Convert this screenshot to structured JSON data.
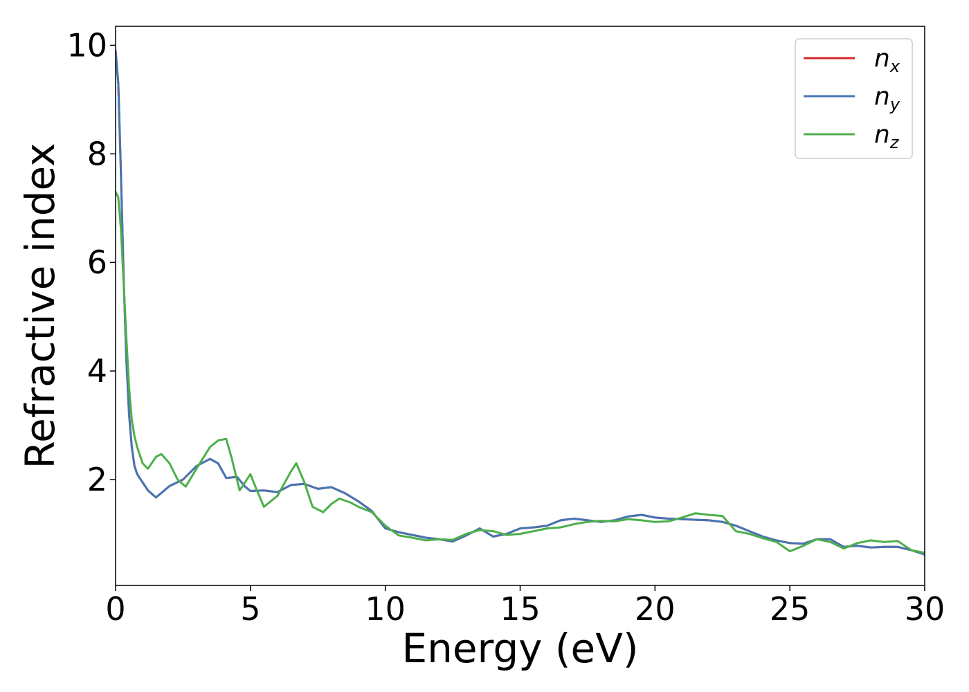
{
  "chart_data": {
    "type": "line",
    "title": "",
    "xlabel": "Energy (eV)",
    "ylabel": "Refractive index",
    "xlim": [
      0,
      30
    ],
    "ylim": [
      0.05,
      10.35
    ],
    "xticks": [
      0,
      5,
      10,
      15,
      20,
      25,
      30
    ],
    "xtick_labels": [
      "0",
      "5",
      "10",
      "15",
      "20",
      "25",
      "30"
    ],
    "yticks": [
      2,
      4,
      6,
      8,
      10
    ],
    "ytick_labels": [
      "2",
      "4",
      "6",
      "8",
      "10"
    ],
    "grid": false,
    "legend_position": "top-right",
    "series": [
      {
        "name": "n_x",
        "legend_base": "n",
        "legend_sub": "x",
        "color": "#d62728",
        "x": [
          0,
          0.1,
          0.2,
          0.3,
          0.4,
          0.5,
          0.6,
          0.7,
          0.8,
          1.0,
          1.2,
          1.5,
          2.0,
          2.5,
          3.0,
          3.5,
          3.8,
          4.1,
          4.5,
          4.8,
          5.0,
          5.5,
          6.0,
          6.5,
          7.0,
          7.5,
          8.0,
          8.5,
          9.0,
          9.5,
          10.0,
          10.5,
          11.0,
          11.5,
          12.0,
          12.5,
          13.0,
          13.5,
          14.0,
          14.5,
          15.0,
          15.5,
          16.0,
          16.5,
          17.0,
          17.5,
          18.0,
          18.5,
          19.0,
          19.5,
          20.0,
          20.5,
          21.0,
          21.5,
          22.0,
          22.5,
          23.0,
          23.5,
          24.0,
          24.5,
          25.0,
          25.5,
          26.0,
          26.5,
          27.0,
          27.5,
          28.0,
          28.5,
          29.0,
          29.5,
          30.0
        ],
        "values": [
          9.9,
          9.3,
          7.6,
          5.7,
          4.2,
          3.2,
          2.6,
          2.25,
          2.1,
          1.95,
          1.8,
          1.67,
          1.88,
          2.0,
          2.25,
          2.38,
          2.3,
          2.03,
          2.05,
          1.87,
          1.79,
          1.8,
          1.77,
          1.9,
          1.92,
          1.83,
          1.86,
          1.75,
          1.6,
          1.42,
          1.1,
          1.03,
          0.98,
          0.93,
          0.9,
          0.86,
          0.97,
          1.1,
          0.95,
          1.0,
          1.1,
          1.12,
          1.15,
          1.25,
          1.28,
          1.25,
          1.22,
          1.25,
          1.32,
          1.35,
          1.3,
          1.28,
          1.27,
          1.26,
          1.25,
          1.22,
          1.15,
          1.05,
          0.95,
          0.88,
          0.83,
          0.82,
          0.9,
          0.9,
          0.76,
          0.78,
          0.75,
          0.76,
          0.76,
          0.7,
          0.62
        ]
      },
      {
        "name": "n_y",
        "legend_base": "n",
        "legend_sub": "y",
        "color": "#4575b4",
        "x": [
          0,
          0.1,
          0.2,
          0.3,
          0.4,
          0.5,
          0.6,
          0.7,
          0.8,
          1.0,
          1.2,
          1.5,
          2.0,
          2.5,
          3.0,
          3.5,
          3.8,
          4.1,
          4.5,
          4.8,
          5.0,
          5.5,
          6.0,
          6.5,
          7.0,
          7.5,
          8.0,
          8.5,
          9.0,
          9.5,
          10.0,
          10.5,
          11.0,
          11.5,
          12.0,
          12.5,
          13.0,
          13.5,
          14.0,
          14.5,
          15.0,
          15.5,
          16.0,
          16.5,
          17.0,
          17.5,
          18.0,
          18.5,
          19.0,
          19.5,
          20.0,
          20.5,
          21.0,
          21.5,
          22.0,
          22.5,
          23.0,
          23.5,
          24.0,
          24.5,
          25.0,
          25.5,
          26.0,
          26.5,
          27.0,
          27.5,
          28.0,
          28.5,
          29.0,
          29.5,
          30.0
        ],
        "values": [
          9.9,
          9.3,
          7.6,
          5.7,
          4.2,
          3.2,
          2.6,
          2.25,
          2.1,
          1.95,
          1.8,
          1.67,
          1.88,
          2.0,
          2.25,
          2.38,
          2.3,
          2.03,
          2.05,
          1.87,
          1.79,
          1.8,
          1.77,
          1.9,
          1.92,
          1.83,
          1.86,
          1.75,
          1.6,
          1.42,
          1.1,
          1.03,
          0.98,
          0.93,
          0.9,
          0.86,
          0.97,
          1.1,
          0.95,
          1.0,
          1.1,
          1.12,
          1.15,
          1.25,
          1.28,
          1.25,
          1.22,
          1.25,
          1.32,
          1.35,
          1.3,
          1.28,
          1.27,
          1.26,
          1.25,
          1.22,
          1.15,
          1.05,
          0.95,
          0.88,
          0.83,
          0.82,
          0.9,
          0.9,
          0.76,
          0.78,
          0.75,
          0.76,
          0.76,
          0.7,
          0.62
        ]
      },
      {
        "name": "n_z",
        "legend_base": "n",
        "legend_sub": "z",
        "color": "#4daf4a",
        "x": [
          0,
          0.1,
          0.2,
          0.3,
          0.4,
          0.5,
          0.6,
          0.7,
          0.8,
          1.0,
          1.2,
          1.5,
          1.7,
          2.0,
          2.3,
          2.6,
          3.0,
          3.5,
          3.8,
          4.1,
          4.3,
          4.6,
          5.0,
          5.2,
          5.5,
          6.0,
          6.5,
          6.7,
          7.0,
          7.3,
          7.7,
          8.0,
          8.3,
          8.7,
          9.0,
          9.5,
          10.0,
          10.5,
          11.0,
          11.5,
          12.0,
          12.5,
          13.0,
          13.5,
          14.0,
          14.5,
          15.0,
          15.5,
          16.0,
          16.5,
          17.0,
          17.5,
          18.0,
          18.5,
          19.0,
          19.5,
          20.0,
          20.5,
          21.0,
          21.5,
          22.0,
          22.5,
          23.0,
          23.5,
          24.0,
          24.5,
          25.0,
          25.5,
          26.0,
          26.5,
          27.0,
          27.5,
          28.0,
          28.5,
          29.0,
          29.5,
          30.0
        ],
        "values": [
          7.3,
          7.2,
          6.6,
          5.6,
          4.6,
          3.7,
          3.1,
          2.8,
          2.6,
          2.3,
          2.2,
          2.42,
          2.47,
          2.3,
          2.0,
          1.87,
          2.2,
          2.6,
          2.72,
          2.75,
          2.4,
          1.8,
          2.1,
          1.85,
          1.5,
          1.7,
          2.15,
          2.3,
          1.95,
          1.5,
          1.4,
          1.55,
          1.65,
          1.58,
          1.5,
          1.4,
          1.15,
          0.97,
          0.93,
          0.88,
          0.9,
          0.89,
          1.0,
          1.07,
          1.05,
          0.98,
          1.0,
          1.05,
          1.1,
          1.12,
          1.18,
          1.22,
          1.24,
          1.23,
          1.27,
          1.25,
          1.22,
          1.23,
          1.3,
          1.38,
          1.35,
          1.33,
          1.05,
          1.0,
          0.92,
          0.85,
          0.68,
          0.78,
          0.9,
          0.85,
          0.73,
          0.83,
          0.88,
          0.85,
          0.87,
          0.7,
          0.65
        ]
      }
    ]
  }
}
